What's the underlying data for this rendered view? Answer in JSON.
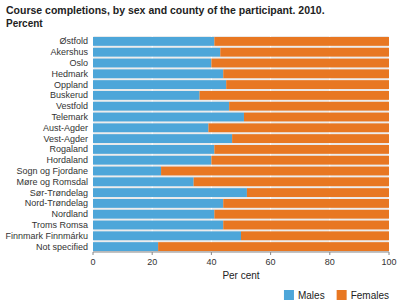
{
  "chart_data": {
    "type": "bar",
    "orientation": "horizontal",
    "stacked": true,
    "title": "Course completions, by sex and county of the participant. 2010.",
    "subtitle": "Percent",
    "xlabel": "Per cent",
    "categories": [
      "Østfold",
      "Akershus",
      "Oslo",
      "Hedmark",
      "Oppland",
      "Buskerud",
      "Vestfold",
      "Telemark",
      "Aust-Agder",
      "Vest-Agder",
      "Rogaland",
      "Hordaland",
      "Sogn og Fjordane",
      "Møre og Romsdal",
      "Sør-Trøndelag",
      "Nord-Trøndelag",
      "Nordland",
      "Troms Romsa",
      "Finnmark Finnmárku",
      "Not specified"
    ],
    "series": [
      {
        "name": "Males",
        "color": "#4da6d9",
        "values": [
          41,
          43,
          40,
          44,
          45,
          36,
          46,
          51,
          39,
          47,
          41,
          40,
          23,
          34,
          52,
          44,
          41,
          44,
          50,
          22
        ]
      },
      {
        "name": "Females",
        "color": "#e87722",
        "values": [
          59,
          57,
          60,
          56,
          55,
          64,
          54,
          49,
          61,
          53,
          59,
          60,
          77,
          66,
          48,
          56,
          59,
          56,
          50,
          78
        ]
      }
    ],
    "xlim": [
      0,
      100
    ],
    "xticks": [
      0,
      20,
      40,
      60,
      80,
      100
    ],
    "grid": true,
    "legend": "lower right"
  }
}
